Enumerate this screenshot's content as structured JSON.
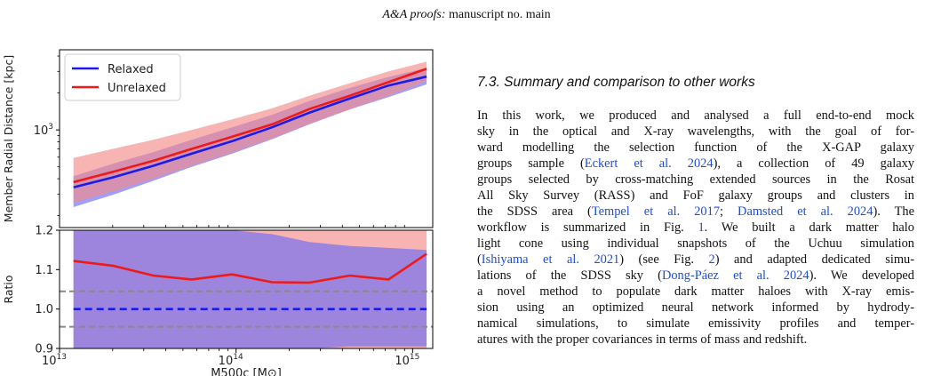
{
  "header": {
    "journal": "A&A proofs:",
    "manuscript": "manuscript no. main"
  },
  "section": {
    "title": "7.3. Summary and comparison to other works"
  },
  "paragraph": {
    "lines": [
      [
        {
          "t": "In this work, we produced and analysed a full end-to-end mock"
        }
      ],
      [
        {
          "t": "sky in the optical and X-ray wavelengths, with the goal of for-"
        }
      ],
      [
        {
          "t": "ward modelling the selection function of the X-GAP galaxy"
        }
      ],
      [
        {
          "t": "groups sample ("
        },
        {
          "t": "Eckert et al. 2024",
          "c": true
        },
        {
          "t": "), a collection of 49 galaxy"
        }
      ],
      [
        {
          "t": "groups selected by cross-matching extended sources in the Rosat"
        }
      ],
      [
        {
          "t": "All Sky Survey (RASS) and FoF galaxy groups and clusters in"
        }
      ],
      [
        {
          "t": "the SDSS area ("
        },
        {
          "t": "Tempel et al. 2017",
          "c": true
        },
        {
          "t": "; "
        },
        {
          "t": "Damsted et al. 2024",
          "c": true
        },
        {
          "t": "). The"
        }
      ],
      [
        {
          "t": "workflow is summarized in Fig. "
        },
        {
          "t": "1",
          "c": true
        },
        {
          "t": ". We built a dark matter halo"
        }
      ],
      [
        {
          "t": "light cone using individual snapshots of the Uchuu simulation"
        }
      ],
      [
        {
          "t": "("
        },
        {
          "t": "Ishiyama et al. 2021",
          "c": true
        },
        {
          "t": ") (see Fig. "
        },
        {
          "t": "2",
          "c": true
        },
        {
          "t": ") and adapted dedicated simu-"
        }
      ],
      [
        {
          "t": "lations of the SDSS sky ("
        },
        {
          "t": "Dong-Páez et al. 2024",
          "c": true
        },
        {
          "t": "). We developed"
        }
      ],
      [
        {
          "t": "a novel method to populate dark matter haloes with X-ray emis-"
        }
      ],
      [
        {
          "t": "sion using an optimized neural network informed by hydrody-"
        }
      ],
      [
        {
          "t": "namical simulations, to simulate emissivity profiles and temper-"
        }
      ],
      [
        {
          "t": "atures with the proper covariances in terms of mass and redshift."
        }
      ]
    ]
  },
  "colors": {
    "relaxed": "#1a1aee",
    "unrelaxed": "#ee1a1a",
    "relaxed_band": "#6b6bf5",
    "unrelaxed_band": "#f58a8a",
    "reference_dash": "#8a8a8a"
  },
  "chart_data": [
    {
      "type": "line",
      "title": "",
      "xlabel": "",
      "ylabel": "Member Radial Distance [kpc]",
      "xscale": "log",
      "yscale": "log",
      "xlim": [
        10000000000000.0,
        1300000000000000.0
      ],
      "ylim": [
        160,
        4500
      ],
      "yticks": [
        {
          "value": 1000,
          "base": "10",
          "exp": "3"
        }
      ],
      "legend": {
        "placement": "top-left",
        "entries": [
          "Relaxed",
          "Unrelaxed"
        ]
      },
      "x": [
        12000000000000.0,
        20000000000000.0,
        34000000000000.0,
        56000000000000.0,
        95000000000000.0,
        160000000000000.0,
        260000000000000.0,
        440000000000000.0,
        730000000000000.0,
        1200000000000000.0
      ],
      "series": [
        {
          "name": "Relaxed",
          "values": [
            340,
            410,
            510,
            640,
            810,
            1050,
            1380,
            1800,
            2300,
            2720
          ],
          "upper": [
            420,
            530,
            660,
            830,
            1050,
            1330,
            1720,
            2200,
            2700,
            3200
          ],
          "lower": [
            235,
            295,
            385,
            500,
            640,
            840,
            1110,
            1470,
            1850,
            2350
          ]
        },
        {
          "name": "Unrelaxed",
          "values": [
            375,
            455,
            560,
            700,
            880,
            1110,
            1480,
            1900,
            2450,
            3150
          ],
          "upper": [
            590,
            700,
            830,
            1000,
            1220,
            1500,
            1900,
            2400,
            3000,
            3600
          ],
          "lower": [
            255,
            315,
            400,
            510,
            655,
            850,
            1120,
            1470,
            1900,
            2500
          ]
        }
      ]
    },
    {
      "type": "line",
      "title": "",
      "xlabel": "M500c [M⊙]",
      "ylabel": "Ratio",
      "xscale": "log",
      "xlim": [
        10000000000000.0,
        1300000000000000.0
      ],
      "ylim": [
        0.9,
        1.2
      ],
      "yticks": [
        "0.9",
        "1.0",
        "1.1",
        "1.2"
      ],
      "xticks": [
        {
          "value": 10000000000000.0,
          "base": "10",
          "exp": "13"
        },
        {
          "value": 100000000000000.0,
          "base": "10",
          "exp": "14"
        },
        {
          "value": 1000000000000000.0,
          "base": "10",
          "exp": "15"
        }
      ],
      "x": [
        12000000000000.0,
        20000000000000.0,
        34000000000000.0,
        56000000000000.0,
        95000000000000.0,
        160000000000000.0,
        260000000000000.0,
        440000000000000.0,
        730000000000000.0,
        1200000000000000.0
      ],
      "series": [
        {
          "name": "Unrelaxed",
          "style": "solid",
          "values": [
            1.122,
            1.11,
            1.085,
            1.075,
            1.088,
            1.068,
            1.067,
            1.085,
            1.075,
            1.14
          ],
          "upper": [
            1.2,
            1.2,
            1.2,
            1.2,
            1.2,
            1.2,
            1.2,
            1.2,
            1.2,
            1.2
          ],
          "lower": [
            0.9,
            0.9,
            0.9,
            0.9,
            0.9,
            0.9,
            0.9,
            0.9,
            0.9,
            0.9
          ]
        },
        {
          "name": "Relaxed",
          "style": "dashed",
          "values": [
            1.0,
            1.0,
            1.0,
            1.0,
            1.0,
            1.0,
            1.0,
            1.0,
            1.0,
            1.0
          ],
          "upper": [
            1.2,
            1.2,
            1.2,
            1.2,
            1.2,
            1.19,
            1.17,
            1.16,
            1.155,
            1.15
          ],
          "lower": [
            0.9,
            0.9,
            0.9,
            0.9,
            0.9,
            0.9,
            0.9,
            0.905,
            0.905,
            0.905
          ]
        }
      ],
      "reference_lines": [
        1.045,
        0.955
      ]
    }
  ]
}
